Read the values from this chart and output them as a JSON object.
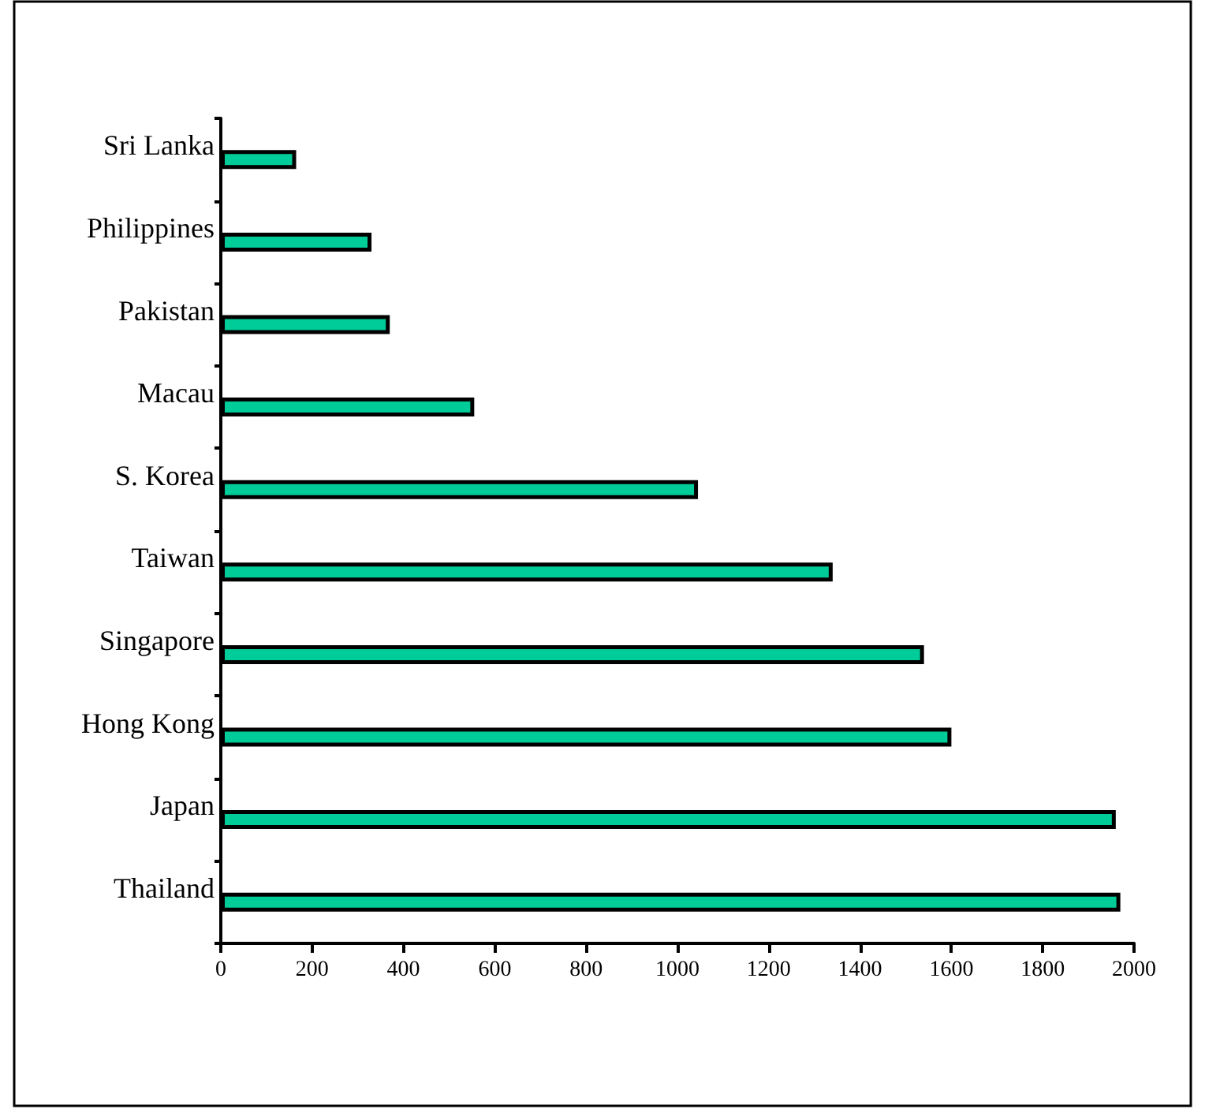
{
  "chart_data": {
    "type": "bar",
    "orientation": "horizontal",
    "categories": [
      "Sri Lanka",
      "Philippines",
      "Pakistan",
      "Macau",
      "S. Korea",
      "Taiwan",
      "Singapore",
      "Hong Kong",
      "Japan",
      "Thailand"
    ],
    "values": [
      165,
      330,
      370,
      555,
      1045,
      1340,
      1540,
      1600,
      1960,
      1970
    ],
    "color": "#00cc99",
    "xlim": [
      0,
      2000
    ],
    "xticks": [
      0,
      200,
      400,
      600,
      800,
      1000,
      1200,
      1400,
      1600,
      1800,
      2000
    ],
    "grid": false
  }
}
